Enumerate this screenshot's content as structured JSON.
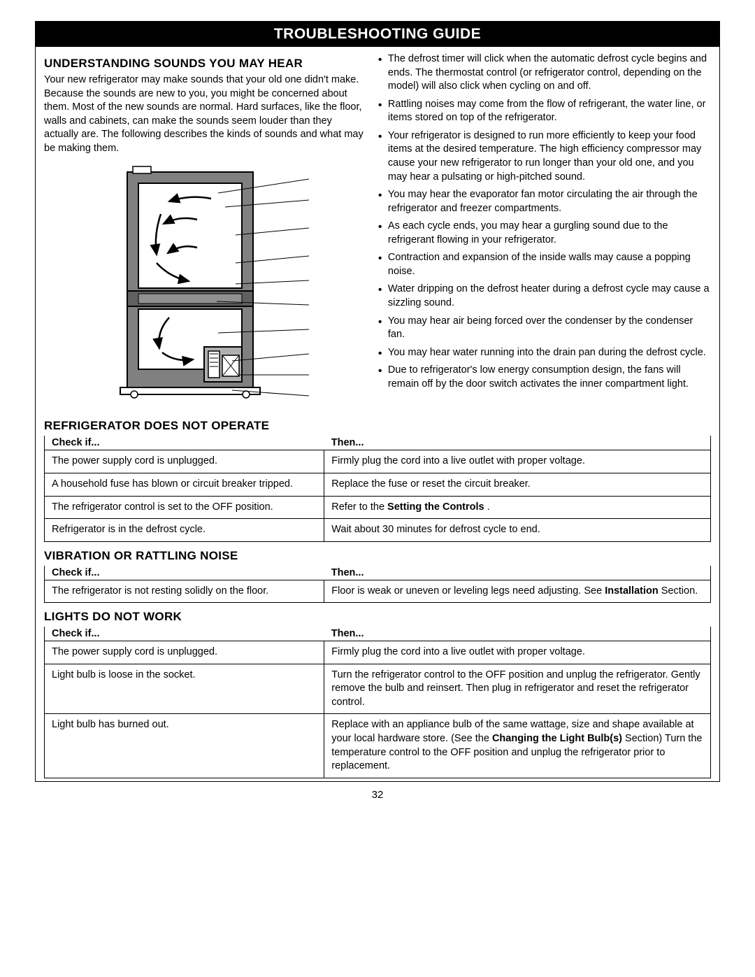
{
  "banner": "TROUBLESHOOTING GUIDE",
  "pageNumber": "32",
  "sounds": {
    "heading": "UNDERSTANDING SOUNDS YOU MAY HEAR",
    "intro": "Your new refrigerator may make sounds that your old one didn't make. Because the sounds are new to you, you might be concerned about them. Most of the new sounds are normal. Hard surfaces, like the floor, walls and cabinets, can make the sounds seem louder than they actually are. The following describes the kinds of sounds and what may be making them.",
    "bullets": [
      "The defrost timer will click when the automatic defrost cycle begins and ends. The thermostat control (or refrigerator control, depending on the model) will also click when cycling on and off.",
      "Rattling noises may come from the flow of refrigerant, the water line, or items stored on top of the refrigerator.",
      "Your refrigerator is designed to run more efficiently to keep your food items at the desired temperature. The high efficiency compressor may cause your new refrigerator to run longer than your old one, and you may hear a pulsating or high-pitched sound.",
      "You may hear the evaporator fan motor circulating the air through the refrigerator and freezer compartments.",
      "As each cycle ends, you may hear a gurgling sound due to the refrigerant flowing in your refrigerator.",
      "Contraction and expansion of the inside walls may cause a popping noise.",
      "Water dripping on the defrost heater during a defrost cycle may cause a sizzling sound.",
      "You may hear air being forced over the condenser by the condenser fan.",
      "You may hear water running into the drain pan during the defrost cycle.",
      "Due to refrigerator's low energy consumption design, the fans will remain off by the door switch activates the inner compartment light."
    ]
  },
  "tables": {
    "checkHeader": "Check if...",
    "thenHeader": "Then...",
    "notOperate": {
      "heading": "REFRIGERATOR DOES NOT OPERATE",
      "rows": [
        {
          "check": "The power supply cord is unplugged.",
          "then": "Firmly plug the cord into a live outlet with proper voltage."
        },
        {
          "check": "A household fuse has blown or circuit breaker tripped.",
          "then": "Replace the fuse or reset the circuit breaker."
        },
        {
          "check": "The refrigerator control is set to the OFF position.",
          "then": "Refer to the <b>Setting the Controls</b> ."
        },
        {
          "check": "Refrigerator is in the defrost cycle.",
          "then": "Wait about 30 minutes for defrost cycle to end."
        }
      ]
    },
    "vibration": {
      "heading": "VIBRATION OR RATTLING NOISE",
      "rows": [
        {
          "check": "The refrigerator is not resting solidly on the floor.",
          "then": "Floor is weak or uneven or leveling legs need adjusting. See <b>Installation</b> Section."
        }
      ]
    },
    "lights": {
      "heading": "LIGHTS DO NOT WORK",
      "rows": [
        {
          "check": "The power supply cord is unplugged.",
          "then": "Firmly plug the cord into a live outlet with proper voltage."
        },
        {
          "check": "Light bulb is loose in the socket.",
          "then": "Turn the refrigerator control to the OFF position and unplug the refrigerator. Gently remove the bulb and reinsert. Then plug in refrigerator and reset the refrigerator control."
        },
        {
          "check": "Light bulb has burned out.",
          "then": "Replace with an appliance bulb of the same wattage, size and shape available at your local hardware store. (See the <b>Changing the Light Bulb(s)</b> Section) Turn the temperature control to the OFF position and unplug the refrigerator prior to replacement."
        }
      ]
    }
  },
  "diagram": {
    "outer_stroke": "#000000",
    "outer_fill": "#ffffff",
    "wall_fill": "#808080",
    "inner_fill": "#ffffff",
    "stroke_width": 2
  }
}
